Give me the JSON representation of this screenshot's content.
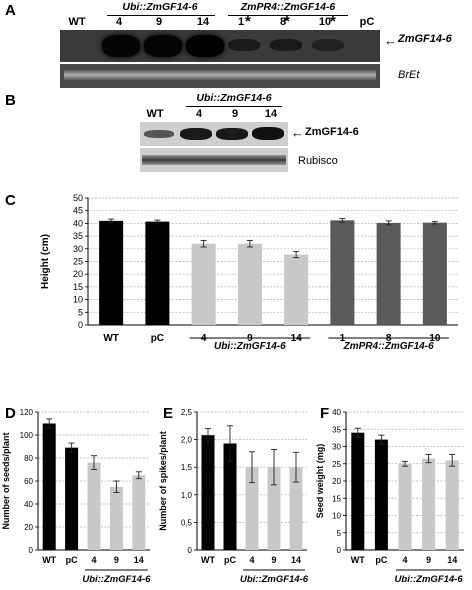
{
  "panels": {
    "A": "A",
    "B": "B",
    "C": "C",
    "D": "D",
    "E": "E",
    "F": "F"
  },
  "panelA": {
    "lanes": [
      "WT",
      "4",
      "9",
      "14",
      "1",
      "8",
      "10",
      "pC"
    ],
    "stars": [
      "*",
      "*",
      "*"
    ],
    "group1": "Ubi::ZmGF14-6",
    "group2": "ZmPR4::ZmGF14-6",
    "label_top": "ZmGF14-6",
    "label_bottom": "BrEt"
  },
  "panelB": {
    "lanes": [
      "WT",
      "4",
      "9",
      "14"
    ],
    "group1": "Ubi::ZmGF14-6",
    "label_top": "ZmGF14-6",
    "label_bottom": "Rubisco"
  },
  "chart_data": [
    {
      "type": "bar",
      "panel": "C",
      "categories": [
        "WT",
        "pC",
        "4",
        "9",
        "14",
        "1",
        "8",
        "10"
      ],
      "values": [
        41,
        40.7,
        32,
        32,
        27.7,
        41.2,
        40.2,
        40.3
      ],
      "errors": [
        0.7,
        0.6,
        1.3,
        1.3,
        1.2,
        0.7,
        0.8,
        0.5
      ],
      "colors": [
        "#000000",
        "#000000",
        "#c8c8c8",
        "#c8c8c8",
        "#c8c8c8",
        "#5a5a5a",
        "#5a5a5a",
        "#5a5a5a"
      ],
      "ylabel": "Height (cm)",
      "ylim": [
        0,
        50
      ],
      "yticks": [
        "0",
        "5",
        "10",
        "15",
        "20",
        "25",
        "30",
        "35",
        "40",
        "45",
        "50"
      ],
      "groups": [
        "Ubi::ZmGF14-6",
        "ZmPR4::ZmGF14-6"
      ],
      "grid": true
    },
    {
      "type": "bar",
      "panel": "D",
      "categories": [
        "WT",
        "pC",
        "4",
        "9",
        "14"
      ],
      "values": [
        110,
        89,
        76,
        55,
        65
      ],
      "errors": [
        4,
        4,
        6,
        5,
        3
      ],
      "colors": [
        "#000000",
        "#000000",
        "#c8c8c8",
        "#c8c8c8",
        "#c8c8c8"
      ],
      "ylabel": "Number of seeds/plant",
      "ylim": [
        0,
        120
      ],
      "yticks": [
        "0",
        "20",
        "40",
        "60",
        "80",
        "100",
        "120"
      ],
      "groups": [
        "Ubi::ZmGF14-6"
      ],
      "grid": true
    },
    {
      "type": "bar",
      "panel": "E",
      "categories": [
        "WT",
        "pC",
        "4",
        "9",
        "14"
      ],
      "values": [
        2.08,
        1.93,
        1.5,
        1.5,
        1.5
      ],
      "errors": [
        0.12,
        0.32,
        0.28,
        0.32,
        0.27
      ],
      "colors": [
        "#000000",
        "#000000",
        "#c8c8c8",
        "#c8c8c8",
        "#c8c8c8"
      ],
      "ylabel": "Number of spikes/plant",
      "ylim": [
        0,
        2.5
      ],
      "yticks": [
        "0",
        "0,5",
        "1,0",
        "1,5",
        "2,0",
        "2,5"
      ],
      "groups": [
        "Ubi::ZmGF14-6"
      ],
      "grid": true
    },
    {
      "type": "bar",
      "panel": "F",
      "categories": [
        "WT",
        "pC",
        "4",
        "9",
        "14"
      ],
      "values": [
        34,
        32,
        25,
        26.5,
        26
      ],
      "errors": [
        1.3,
        1.3,
        0.7,
        1.2,
        1.7
      ],
      "colors": [
        "#000000",
        "#000000",
        "#c8c8c8",
        "#c8c8c8",
        "#c8c8c8"
      ],
      "ylabel": "Seed weight (mg)",
      "ylim": [
        0,
        40
      ],
      "yticks": [
        "0",
        "5",
        "10",
        "15",
        "20",
        "25",
        "30",
        "35",
        "40"
      ],
      "groups": [
        "Ubi::ZmGF14-6"
      ],
      "grid": true
    }
  ]
}
